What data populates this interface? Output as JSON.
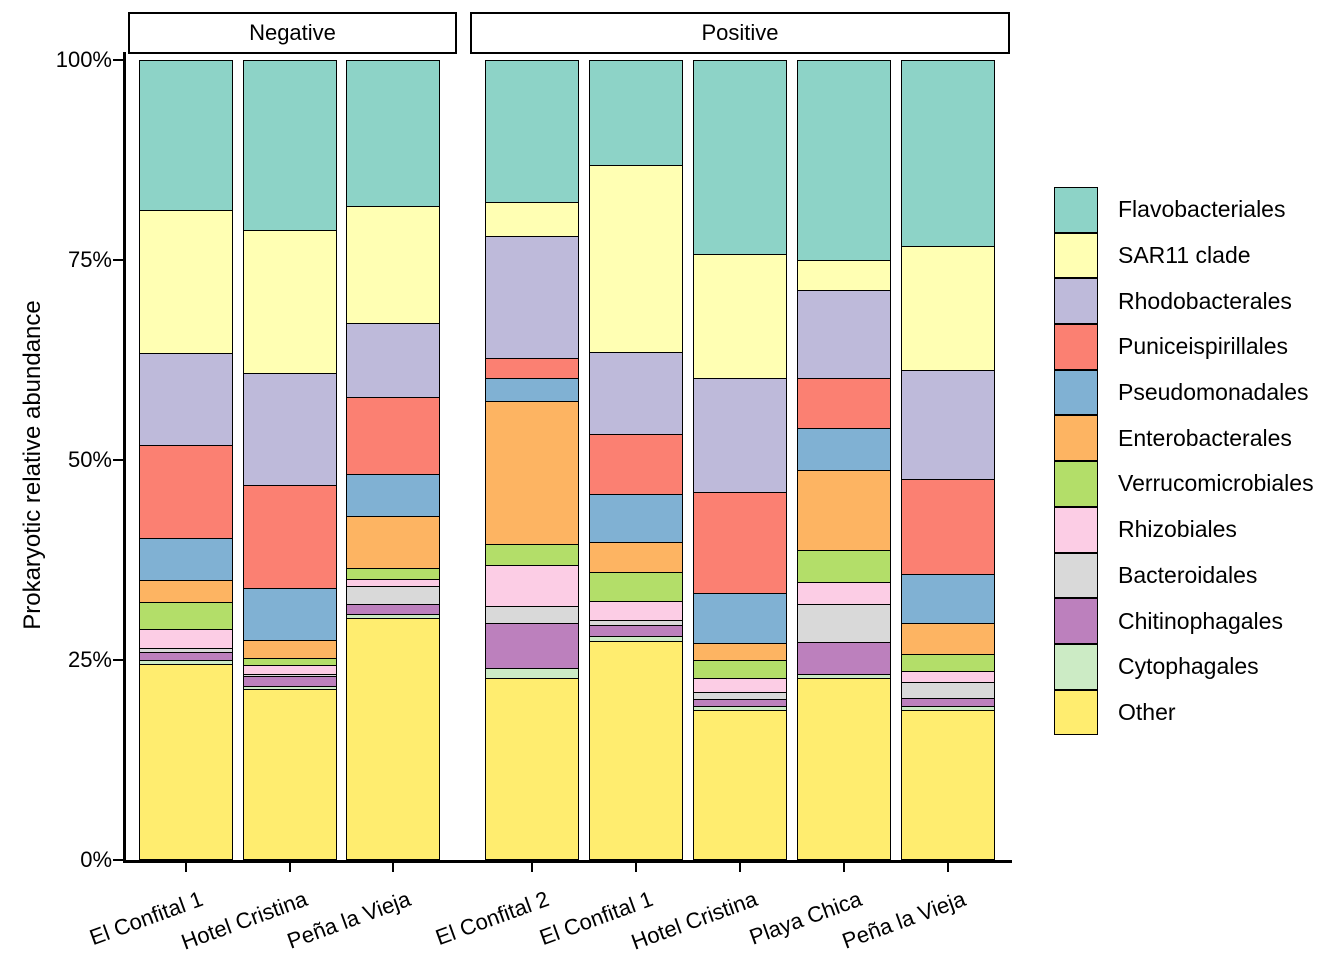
{
  "chart_data": {
    "type": "bar",
    "stacked": true,
    "orientation": "vertical",
    "title": "",
    "xlabel": "",
    "ylabel": "Prokaryotic relative abundance",
    "ylim": [
      0,
      100
    ],
    "grid": false,
    "legend_position": "right",
    "y_ticks": [
      {
        "value": 0,
        "label": "0%"
      },
      {
        "value": 25,
        "label": "25%"
      },
      {
        "value": 50,
        "label": "50%"
      },
      {
        "value": 75,
        "label": "75%"
      },
      {
        "value": 100,
        "label": "100%"
      }
    ],
    "legend": [
      {
        "label": "Flavobacteriales",
        "color": "#8DD3C7"
      },
      {
        "label": "SAR11 clade",
        "color": "#FFFFB3"
      },
      {
        "label": "Rhodobacterales",
        "color": "#BEBADA"
      },
      {
        "label": "Puniceispirillales",
        "color": "#FB8072"
      },
      {
        "label": "Pseudomonadales",
        "color": "#80B1D3"
      },
      {
        "label": "Enterobacterales",
        "color": "#FDB462"
      },
      {
        "label": "Verrucomicrobiales",
        "color": "#B3DE69"
      },
      {
        "label": "Rhizobiales",
        "color": "#FCCDE5"
      },
      {
        "label": "Bacteroidales",
        "color": "#D9D9D9"
      },
      {
        "label": "Chitinophagales",
        "color": "#BC80BD"
      },
      {
        "label": "Cytophagales",
        "color": "#CCEBC5"
      },
      {
        "label": "Other",
        "color": "#FFED6F"
      }
    ],
    "stack_order_bottom_to_top": [
      "Other",
      "Cytophagales",
      "Chitinophagales",
      "Bacteroidales",
      "Rhizobiales",
      "Verrucomicrobiales",
      "Enterobacterales",
      "Pseudomonadales",
      "Puniceispirillales",
      "Rhodobacterales",
      "SAR11 clade",
      "Flavobacteriales"
    ],
    "facets": [
      {
        "label": "Negative",
        "bars": [
          {
            "category": "El Confital 1",
            "values": {
              "Other": 24.5,
              "Cytophagales": 0.5,
              "Chitinophagales": 1.0,
              "Bacteroidales": 0.5,
              "Rhizobiales": 2.4,
              "Verrucomicrobiales": 3.3,
              "Enterobacterales": 2.8,
              "Pseudomonadales": 5.2,
              "Puniceispirillales": 11.7,
              "Rhodobacterales": 11.5,
              "SAR11 clade": 17.8,
              "Flavobacteriales": 18.8
            }
          },
          {
            "category": "Hotel Cristina",
            "values": {
              "Other": 21.4,
              "Cytophagales": 0.4,
              "Chitinophagales": 1.2,
              "Bacteroidales": 0.3,
              "Rhizobiales": 1.1,
              "Verrucomicrobiales": 0.8,
              "Enterobacterales": 2.3,
              "Pseudomonadales": 6.5,
              "Puniceispirillales": 12.9,
              "Rhodobacterales": 14.0,
              "SAR11 clade": 17.8,
              "Flavobacteriales": 21.3
            }
          },
          {
            "category": "Peña la Vieja",
            "values": {
              "Other": 30.3,
              "Cytophagales": 0.5,
              "Chitinophagales": 1.2,
              "Bacteroidales": 2.2,
              "Rhizobiales": 0.9,
              "Verrucomicrobiales": 1.4,
              "Enterobacterales": 6.5,
              "Pseudomonadales": 5.3,
              "Puniceispirillales": 9.6,
              "Rhodobacterales": 9.2,
              "SAR11 clade": 14.6,
              "Flavobacteriales": 18.3
            }
          }
        ]
      },
      {
        "label": "Positive",
        "bars": [
          {
            "category": "El Confital 2",
            "values": {
              "Other": 22.8,
              "Cytophagales": 1.2,
              "Chitinophagales": 5.6,
              "Bacteroidales": 2.1,
              "Rhizobiales": 5.2,
              "Verrucomicrobiales": 2.6,
              "Enterobacterales": 17.9,
              "Pseudomonadales": 2.8,
              "Puniceispirillales": 2.5,
              "Rhodobacterales": 15.3,
              "SAR11 clade": 4.3,
              "Flavobacteriales": 17.7
            }
          },
          {
            "category": "El Confital 1",
            "values": {
              "Other": 27.4,
              "Cytophagales": 0.6,
              "Chitinophagales": 1.4,
              "Bacteroidales": 0.6,
              "Rhizobiales": 2.4,
              "Verrucomicrobiales": 3.6,
              "Enterobacterales": 3.7,
              "Pseudomonadales": 6.0,
              "Puniceispirillales": 7.5,
              "Rhodobacterales": 10.3,
              "SAR11 clade": 23.4,
              "Flavobacteriales": 13.1
            }
          },
          {
            "category": "Hotel Cristina",
            "values": {
              "Other": 18.7,
              "Cytophagales": 0.5,
              "Chitinophagales": 0.9,
              "Bacteroidales": 0.9,
              "Rhizobiales": 1.8,
              "Verrucomicrobiales": 2.2,
              "Enterobacterales": 2.1,
              "Pseudomonadales": 6.3,
              "Puniceispirillales": 12.6,
              "Rhodobacterales": 14.3,
              "SAR11 clade": 15.5,
              "Flavobacteriales": 24.2
            }
          },
          {
            "category": "Playa Chica",
            "values": {
              "Other": 22.8,
              "Cytophagales": 0.5,
              "Chitinophagales": 3.9,
              "Bacteroidales": 4.8,
              "Rhizobiales": 2.7,
              "Verrucomicrobiales": 4.0,
              "Enterobacterales": 10.0,
              "Pseudomonadales": 5.3,
              "Puniceispirillales": 6.3,
              "Rhodobacterales": 10.9,
              "SAR11 clade": 3.8,
              "Flavobacteriales": 25.0
            }
          },
          {
            "category": "Peña la Vieja",
            "values": {
              "Other": 18.8,
              "Cytophagales": 0.4,
              "Chitinophagales": 1.1,
              "Bacteroidales": 2.0,
              "Rhizobiales": 1.3,
              "Verrucomicrobiales": 2.2,
              "Enterobacterales": 3.8,
              "Pseudomonadales": 6.1,
              "Puniceispirillales": 11.9,
              "Rhodobacterales": 13.7,
              "SAR11 clade": 15.4,
              "Flavobacteriales": 23.3
            }
          }
        ]
      }
    ]
  }
}
